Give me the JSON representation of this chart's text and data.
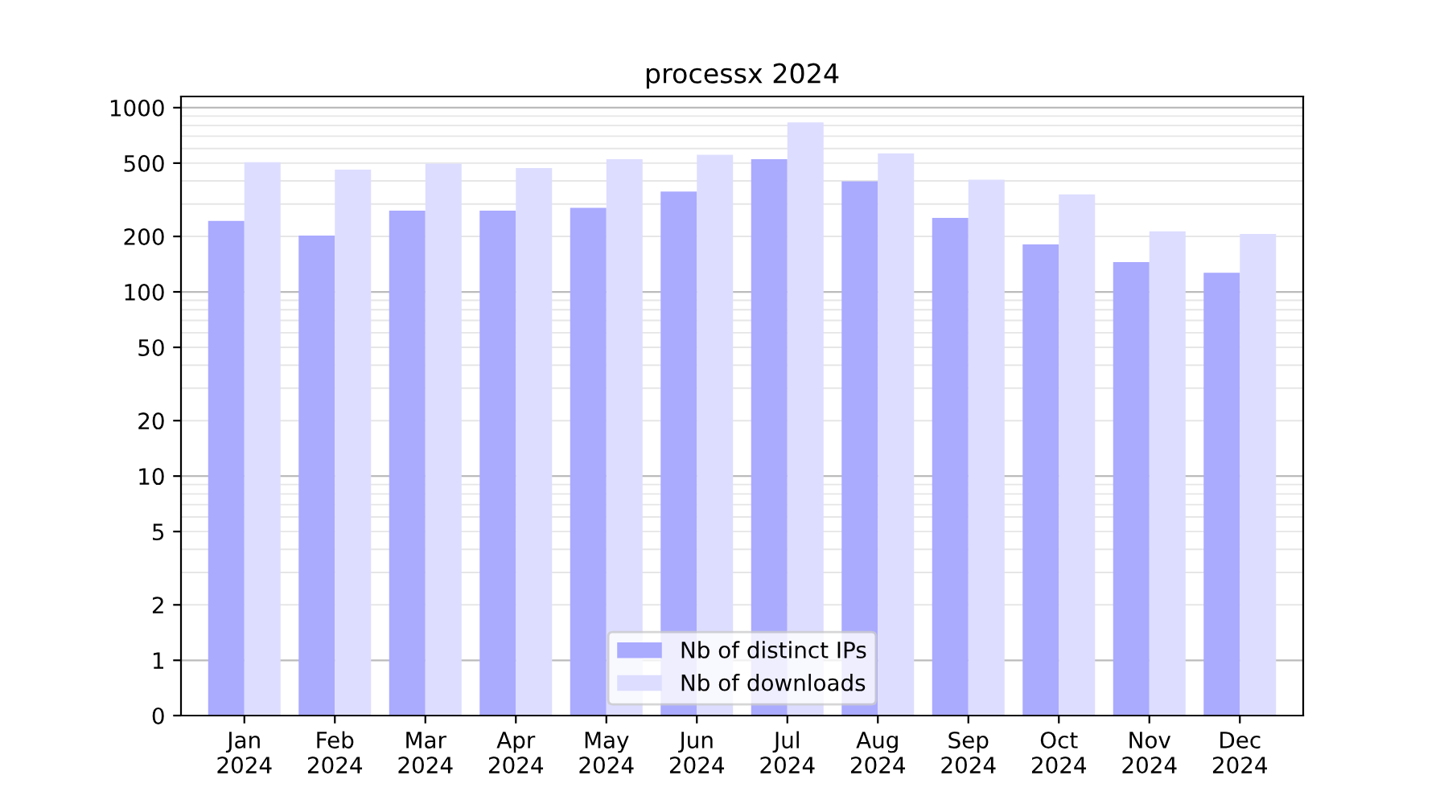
{
  "chart_data": {
    "type": "bar",
    "title": "processx 2024",
    "categories": [
      "Jan\n2024",
      "Feb\n2024",
      "Mar\n2024",
      "Apr\n2024",
      "May\n2024",
      "Jun\n2024",
      "Jul\n2024",
      "Aug\n2024",
      "Sep\n2024",
      "Oct\n2024",
      "Nov\n2024",
      "Dec\n2024"
    ],
    "series": [
      {
        "name": "Nb of distinct IPs",
        "color": "#aaaaff",
        "values": [
          243,
          202,
          276,
          276,
          286,
          350,
          525,
          398,
          252,
          181,
          145,
          127
        ]
      },
      {
        "name": "Nb of downloads",
        "color": "#ddddff",
        "values": [
          506,
          461,
          497,
          470,
          525,
          555,
          831,
          565,
          406,
          338,
          213,
          206
        ]
      }
    ],
    "log": "y",
    "ylim": [
      0,
      1150
    ],
    "yticks": [
      0,
      1,
      2,
      5,
      10,
      20,
      50,
      100,
      200,
      500,
      1000
    ],
    "grid": "y",
    "legend": "bottom"
  }
}
